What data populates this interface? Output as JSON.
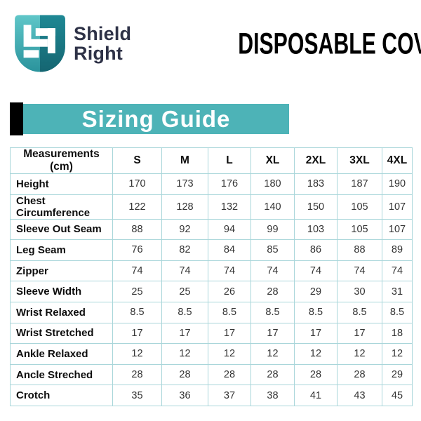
{
  "header": {
    "logo": {
      "line1": "Shield",
      "line2": "Right"
    },
    "title": "DISPOSABLE COVERALLS"
  },
  "banner": {
    "label": "Sizing Guide"
  },
  "table": {
    "columns": [
      "Measurements (cm)",
      "S",
      "M",
      "L",
      "XL",
      "2XL",
      "3XL",
      "4XL"
    ],
    "rows": [
      {
        "label": "Height",
        "values": [
          "170",
          "173",
          "176",
          "180",
          "183",
          "187",
          "190"
        ]
      },
      {
        "label": "Chest Circumference",
        "values": [
          "122",
          "128",
          "132",
          "140",
          "150",
          "105",
          "107"
        ]
      },
      {
        "label": "Sleeve Out Seam",
        "values": [
          "88",
          "92",
          "94",
          "99",
          "103",
          "105",
          "107"
        ]
      },
      {
        "label": "Leg Seam",
        "values": [
          "76",
          "82",
          "84",
          "85",
          "86",
          "88",
          "89"
        ]
      },
      {
        "label": "Zipper",
        "values": [
          "74",
          "74",
          "74",
          "74",
          "74",
          "74",
          "74"
        ]
      },
      {
        "label": "Sleeve Width",
        "values": [
          "25",
          "25",
          "26",
          "28",
          "29",
          "30",
          "31"
        ]
      },
      {
        "label": "Wrist Relaxed",
        "values": [
          "8.5",
          "8.5",
          "8.5",
          "8.5",
          "8.5",
          "8.5",
          "8.5"
        ]
      },
      {
        "label": "Wrist Stretched",
        "values": [
          "17",
          "17",
          "17",
          "17",
          "17",
          "17",
          "18"
        ]
      },
      {
        "label": "Ankle Relaxed",
        "values": [
          "12",
          "12",
          "12",
          "12",
          "12",
          "12",
          "12"
        ]
      },
      {
        "label": "Ancle Streched",
        "values": [
          "28",
          "28",
          "28",
          "28",
          "28",
          "28",
          "29"
        ]
      },
      {
        "label": "Crotch",
        "values": [
          "35",
          "36",
          "37",
          "38",
          "41",
          "43",
          "45"
        ]
      }
    ]
  },
  "colors": {
    "banner_teal": "#4db3b7",
    "table_border": "#a9d6da",
    "brand_navy": "#2e3247",
    "shield_light_top": "#5fc6c8",
    "shield_light_bottom": "#2a939c",
    "shield_dark_top": "#1e8894",
    "shield_dark_bottom": "#156571",
    "accent_black": "#000000",
    "title_black": "#000000"
  }
}
